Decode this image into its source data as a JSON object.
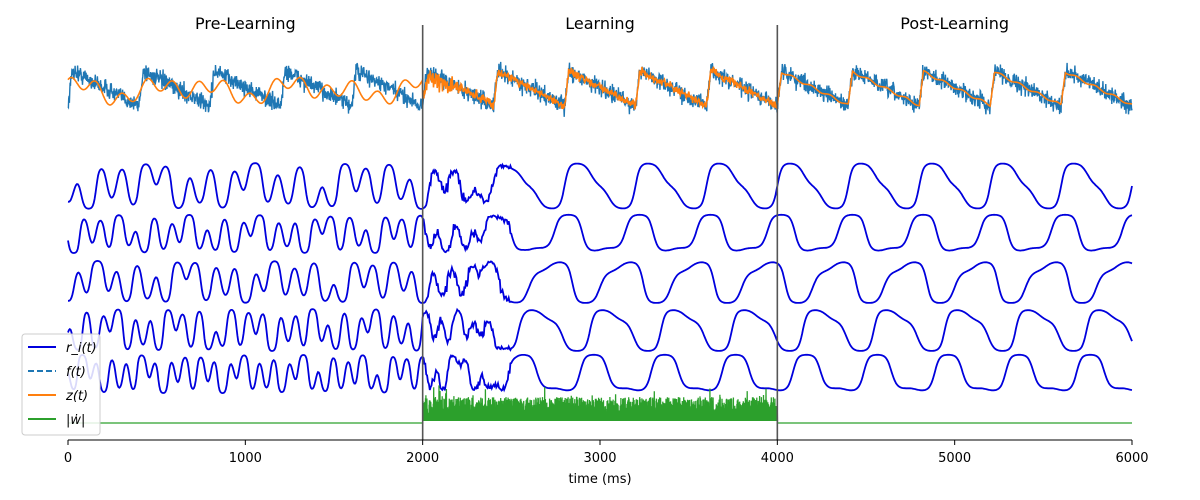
{
  "chart_data": {
    "type": "line",
    "xlabel": "time (ms)",
    "xlim": [
      0,
      6000
    ],
    "xticks": [
      "0",
      "1000",
      "2000",
      "3000",
      "4000",
      "5000",
      "6000"
    ],
    "phases": [
      {
        "title": "Pre-Learning",
        "start": 0,
        "end": 2000
      },
      {
        "title": "Learning",
        "start": 2000,
        "end": 4000
      },
      {
        "title": "Post-Learning",
        "start": 4000,
        "end": 6000
      }
    ],
    "phase_boundaries": [
      2000,
      4000
    ],
    "target_period_ms": 400,
    "neuron_traces": 5,
    "legend": [
      {
        "label": "r_i(t)",
        "color": "#0000dd",
        "dash": false
      },
      {
        "label": "f(t)",
        "color": "#1f77b4",
        "dash": true
      },
      {
        "label": "z(t)",
        "color": "#ff7f0e",
        "dash": false
      },
      {
        "label": "|ẇ|",
        "color": "#2ca02c",
        "dash": false
      }
    ],
    "series": [
      {
        "name": "f(t)",
        "color": "#1f77b4"
      },
      {
        "name": "z(t)",
        "color": "#ff7f0e"
      },
      {
        "name": "r_i(t)",
        "color": "#0000dd"
      },
      {
        "name": "|ẇ|",
        "color": "#2ca02c"
      }
    ]
  }
}
